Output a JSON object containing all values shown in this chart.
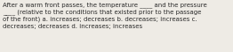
{
  "text": "After a warm front passes, the temperature ____ and the pressure\n____ (relative to the conditions that existed prior to the passage\nof the front) a. increases; decreases b. decreases; increases c.\ndecreases; decreases d. increases; increases",
  "background_color": "#eeebe5",
  "text_color": "#2b2b2b",
  "font_size": 5.05,
  "fig_width": 2.62,
  "fig_height": 0.59,
  "dpi": 100
}
